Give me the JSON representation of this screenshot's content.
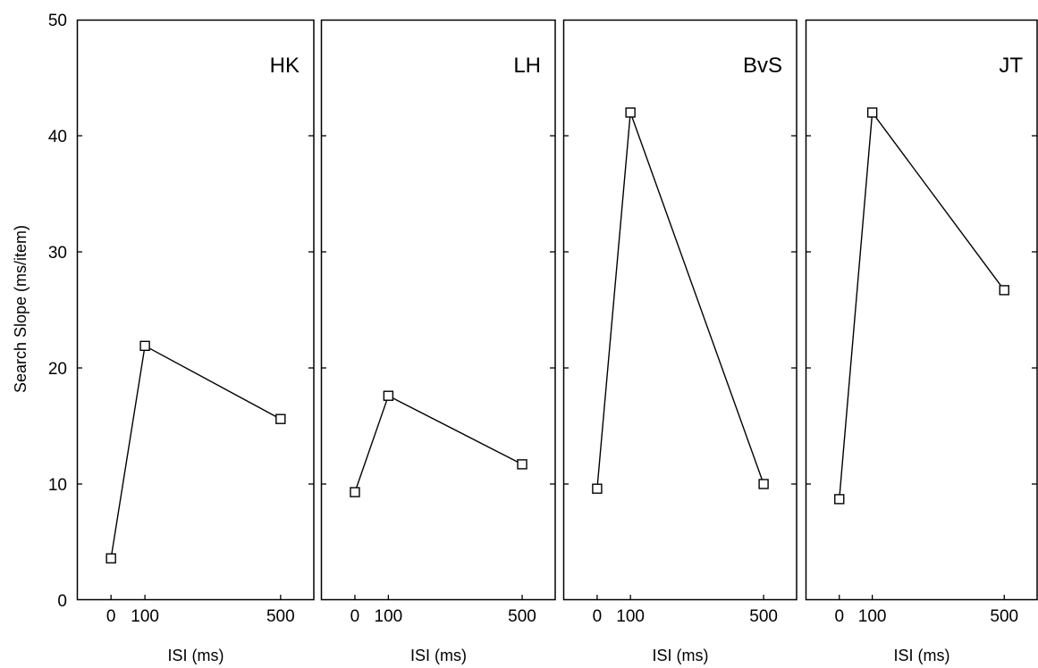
{
  "chart_data": {
    "type": "line",
    "ylabel": "Search Slope (ms/item)",
    "ylim": [
      0,
      50
    ],
    "yticks": [
      0,
      10,
      20,
      30,
      40,
      50
    ],
    "x": [
      0,
      100,
      500
    ],
    "xticks": [
      "0",
      "100",
      "500"
    ],
    "xlim": [
      -40,
      540
    ],
    "grid": false,
    "marker": "square",
    "line_color": "#000000",
    "panels": [
      {
        "label": "HK",
        "xlabel": "ISI (ms)",
        "values": [
          3.6,
          21.9,
          15.6
        ]
      },
      {
        "label": "LH",
        "xlabel": "ISI (ms)",
        "values": [
          9.3,
          17.6,
          11.7
        ]
      },
      {
        "label": "BvS",
        "xlabel": "ISI (ms)",
        "values": [
          9.6,
          42.0,
          10.0
        ]
      },
      {
        "label": "JT",
        "xlabel": "ISI (ms)",
        "values": [
          8.7,
          42.0,
          26.7
        ]
      }
    ]
  }
}
